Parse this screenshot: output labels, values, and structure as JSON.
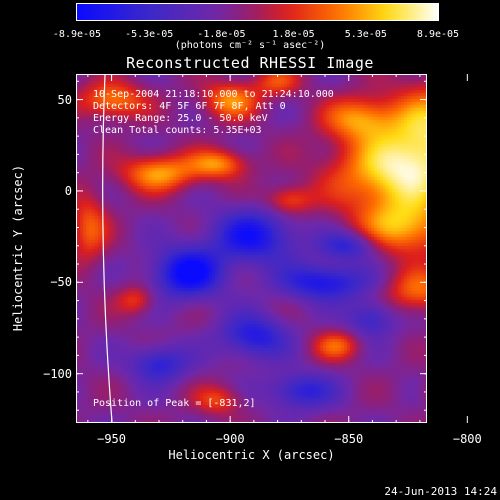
{
  "colorbar": {
    "ticks": [
      "-8.9e-05",
      "-5.3e-05",
      "-1.8e-05",
      "1.8e-05",
      "5.3e-05",
      "8.9e-05"
    ],
    "unit_label": "(photons cm⁻² s⁻¹ asec⁻²)"
  },
  "chart_data": {
    "type": "heatmap",
    "title": "Reconstructed RHESSI Image",
    "xlabel": "Heliocentric X (arcsec)",
    "ylabel": "Heliocentric Y (arcsec)",
    "xlim": [
      -965,
      -817
    ],
    "ylim": [
      -127,
      64
    ],
    "xticks": [
      -950,
      -900,
      -850,
      -800
    ],
    "yticks": [
      -100,
      -50,
      0,
      50
    ],
    "xtick_labels": [
      "−950",
      "−900",
      "−850",
      "−800"
    ],
    "ytick_labels": [
      "−100",
      "−50",
      "0",
      "50"
    ],
    "value_range": [
      -8.9e-05,
      8.9e-05
    ],
    "colormap": "rainbow (blue-purple-red-orange-yellow-white)",
    "annotations": {
      "time": "10-Sep-2004 21:18:10.000 to 21:24:10.000",
      "detectors": "Detectors: 4F 5F 6F 7F 8F, Att 0",
      "energy": "Energy Range: 25.0 - 50.0 keV",
      "clean": "Clean    Total counts: 5.35E+03",
      "peak": "Position of Peak = [-831,2]"
    }
  },
  "footer": {
    "date": "24-Jun-2013 14:24"
  }
}
